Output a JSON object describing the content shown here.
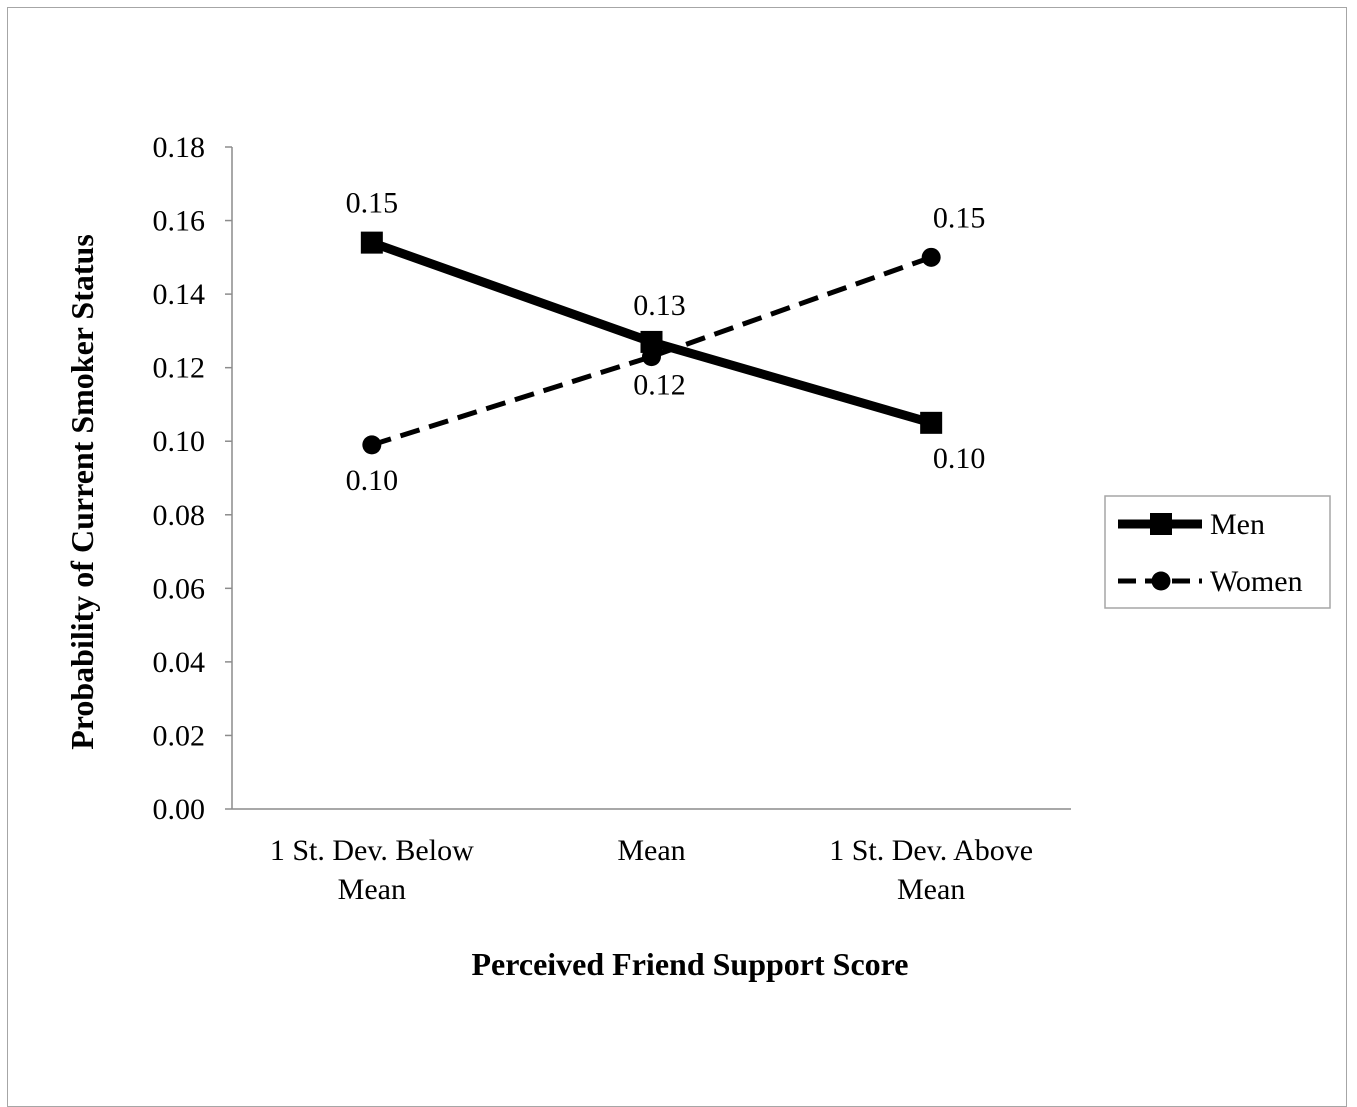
{
  "chart_data": {
    "type": "line",
    "title": "",
    "xlabel": "Perceived Friend Support Score",
    "ylabel": "Probability of Current Smoker Status",
    "ylim": [
      0,
      0.18
    ],
    "ytick_step": 0.02,
    "yticks": [
      "0.00",
      "0.02",
      "0.04",
      "0.06",
      "0.08",
      "0.10",
      "0.12",
      "0.14",
      "0.16",
      "0.18"
    ],
    "categories": [
      [
        "1 St. Dev. Below",
        "Mean"
      ],
      [
        "Mean"
      ],
      [
        "1 St. Dev. Above",
        "Mean"
      ]
    ],
    "grid": false,
    "legend_position": "right",
    "series": [
      {
        "name": "Men",
        "values": [
          0.154,
          0.127,
          0.105
        ],
        "labels": [
          "0.15",
          "0.13",
          "0.10"
        ],
        "line_style": "solid",
        "marker": "square",
        "color": "#000000"
      },
      {
        "name": "Women",
        "values": [
          0.099,
          0.123,
          0.15
        ],
        "labels": [
          "0.10",
          "0.12",
          "0.15"
        ],
        "line_style": "dashed",
        "marker": "circle",
        "color": "#000000"
      }
    ]
  }
}
